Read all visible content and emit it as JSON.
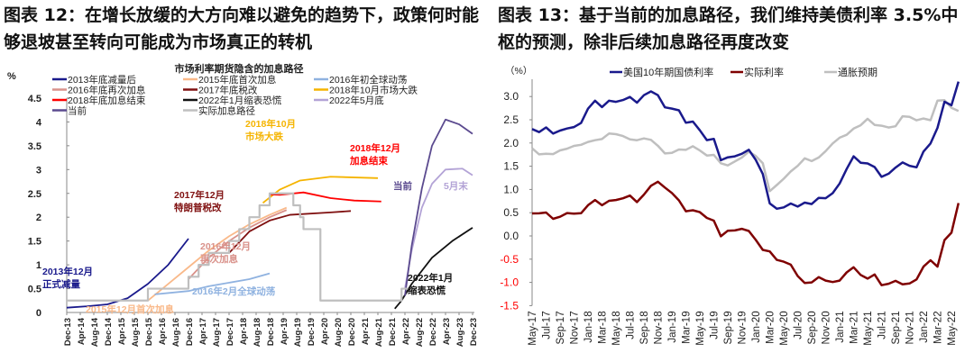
{
  "left": {
    "title": "图表 12：在增长放缓的大方向难以避免的趋势下，政策何时能够退坡甚至转向可能成为市场真正的转机"
  },
  "right": {
    "title": "图表 13：基于当前的加息路径，我们维持美债利率 3.5%中枢的预测，除非后续加息路径再度改变"
  },
  "chart_data": [
    {
      "type": "line",
      "title": "市场利率期货隐含的加息路径",
      "ylabel": "%",
      "ylim": [
        0,
        4.5
      ],
      "yticks": [
        "0",
        "0.5",
        "1",
        "1.5",
        "2",
        "2.5",
        "3",
        "3.5",
        "4",
        "4.5"
      ],
      "xticks": [
        "Dec-13",
        "Apr-14",
        "Aug-14",
        "Dec-14",
        "Apr-15",
        "Aug-15",
        "Dec-15",
        "Apr-16",
        "Aug-16",
        "Dec-16",
        "Apr-17",
        "Aug-17",
        "Dec-17",
        "Apr-18",
        "Aug-18",
        "Dec-18",
        "Apr-19",
        "Aug-19",
        "Dec-19",
        "Apr-20",
        "Aug-20",
        "Dec-20",
        "Apr-21",
        "Aug-21",
        "Dec-21",
        "Apr-22",
        "Aug-22",
        "Dec-22",
        "Apr-23",
        "Aug-23",
        "Dec-23"
      ],
      "legend_position": "top",
      "series": [
        {
          "name": "2013年底减量后",
          "color": "#1a1a8c",
          "points": [
            [
              "2013-12",
              0.1
            ],
            [
              "2014-06",
              0.13
            ],
            [
              "2014-12",
              0.17
            ],
            [
              "2015-06",
              0.3
            ],
            [
              "2015-12",
              0.6
            ],
            [
              "2016-06",
              1.0
            ],
            [
              "2016-12",
              1.55
            ]
          ]
        },
        {
          "name": "2015年底首次加息",
          "color": "#f9b98a",
          "points": [
            [
              "2015-12",
              0.25
            ],
            [
              "2016-06",
              0.6
            ],
            [
              "2016-12",
              0.95
            ],
            [
              "2017-06",
              1.3
            ],
            [
              "2017-12",
              1.6
            ],
            [
              "2018-06",
              1.85
            ],
            [
              "2018-12",
              2.05
            ],
            [
              "2019-05",
              2.2
            ]
          ]
        },
        {
          "name": "2016年初全球动荡",
          "color": "#8fb2e0",
          "points": [
            [
              "2016-02",
              0.38
            ],
            [
              "2016-12",
              0.45
            ],
            [
              "2017-06",
              0.55
            ],
            [
              "2018-06",
              0.7
            ],
            [
              "2018-12",
              0.82
            ]
          ]
        },
        {
          "name": "2016年底再次加息",
          "color": "#d9918a",
          "points": [
            [
              "2016-12",
              0.7
            ],
            [
              "2017-06",
              1.15
            ],
            [
              "2017-12",
              1.5
            ],
            [
              "2018-06",
              1.78
            ],
            [
              "2018-12",
              2.0
            ],
            [
              "2019-05",
              2.15
            ]
          ]
        },
        {
          "name": "2017年底税改",
          "color": "#7f1010",
          "points": [
            [
              "2017-12",
              1.25
            ],
            [
              "2018-06",
              1.7
            ],
            [
              "2018-12",
              1.93
            ],
            [
              "2019-06",
              2.05
            ],
            [
              "2020-06",
              2.1
            ],
            [
              "2020-12",
              2.13
            ]
          ]
        },
        {
          "name": "2018年10月市场大跌",
          "color": "#f5b400",
          "points": [
            [
              "2018-10",
              2.3
            ],
            [
              "2019-03",
              2.58
            ],
            [
              "2019-09",
              2.77
            ],
            [
              "2020-06",
              2.85
            ],
            [
              "2021-08",
              2.82
            ]
          ]
        },
        {
          "name": "2018年底加息结束",
          "color": "#ff0000",
          "points": [
            [
              "2018-12",
              2.48
            ],
            [
              "2019-03",
              2.47
            ],
            [
              "2019-10",
              2.52
            ],
            [
              "2020-06",
              2.4
            ],
            [
              "2021-01",
              2.35
            ],
            [
              "2021-09",
              2.33
            ]
          ]
        },
        {
          "name": "2022年1月缩表恐慌",
          "color": "#111111",
          "points": [
            [
              "2022-01",
              0.08
            ],
            [
              "2022-03",
              0.25
            ],
            [
              "2022-06",
              0.6
            ],
            [
              "2022-12",
              1.15
            ],
            [
              "2023-06",
              1.5
            ],
            [
              "2023-12",
              1.78
            ]
          ]
        },
        {
          "name": "2022年5月底",
          "color": "#b3a3d6",
          "points": [
            [
              "2022-04",
              0.5
            ],
            [
              "2022-06",
              1.3
            ],
            [
              "2022-09",
              2.2
            ],
            [
              "2022-12",
              2.7
            ],
            [
              "2023-04",
              3.0
            ],
            [
              "2023-09",
              3.02
            ],
            [
              "2023-12",
              2.88
            ]
          ]
        },
        {
          "name": "当前",
          "color": "#5b4a8f",
          "points": [
            [
              "2022-04",
              0.35
            ],
            [
              "2022-06",
              1.4
            ],
            [
              "2022-09",
              2.6
            ],
            [
              "2022-12",
              3.5
            ],
            [
              "2023-04",
              4.05
            ],
            [
              "2023-08",
              3.95
            ],
            [
              "2023-12",
              3.75
            ]
          ]
        },
        {
          "name": "实际加息路径",
          "color": "#bfbfbf",
          "step": true,
          "points": [
            [
              "2013-12",
              0.25
            ],
            [
              "2015-12",
              0.5
            ],
            [
              "2016-12",
              0.75
            ],
            [
              "2017-03",
              1.0
            ],
            [
              "2017-06",
              1.25
            ],
            [
              "2017-12",
              1.5
            ],
            [
              "2018-03",
              1.75
            ],
            [
              "2018-06",
              2.0
            ],
            [
              "2018-09",
              2.25
            ],
            [
              "2018-12",
              2.5
            ],
            [
              "2019-07",
              2.25
            ],
            [
              "2019-09",
              2.0
            ],
            [
              "2019-10",
              1.75
            ],
            [
              "2020-03",
              0.25
            ],
            [
              "2022-03",
              0.5
            ],
            [
              "2022-05",
              0.5
            ]
          ]
        }
      ],
      "annotations": [
        {
          "text": [
            "2013年12月",
            "正式减量"
          ],
          "color": "#1a1a8c"
        },
        {
          "text": [
            "2015年12月首次加息"
          ],
          "color": "#f9b98a"
        },
        {
          "text": [
            "2016年2月全球动荡"
          ],
          "color": "#8fb2e0"
        },
        {
          "text": [
            "2016年12月",
            "再次加息"
          ],
          "color": "#d9918a"
        },
        {
          "text": [
            "2017年12月",
            "特朗普税改"
          ],
          "color": "#7f1010"
        },
        {
          "text": [
            "2018年10月",
            "市场大跌"
          ],
          "color": "#f5b400"
        },
        {
          "text": [
            "2018年12月",
            "加息结束"
          ],
          "color": "#ff0000"
        },
        {
          "text": [
            "当前"
          ],
          "color": "#5b4a8f"
        },
        {
          "text": [
            "5月末"
          ],
          "color": "#b3a3d6"
        },
        {
          "text": [
            "2022年1月",
            "缩表恐慌"
          ],
          "color": "#111111"
        }
      ]
    },
    {
      "type": "line",
      "ylabel": "（%）",
      "ylim": [
        -1.5,
        3.5
      ],
      "yticks": [
        "3.0",
        "2.5",
        "2.0",
        "1.5",
        "1.0",
        "0.5",
        "0.0",
        "-0.5",
        "-1.0",
        "-1.5"
      ],
      "negative_tick_color": "#ff0000",
      "xticks": [
        "May-17",
        "Jul-17",
        "Sep-17",
        "Nov-17",
        "Jan-18",
        "Mar-18",
        "May-18",
        "Jul-18",
        "Sep-18",
        "Nov-18",
        "Jan-19",
        "Mar-19",
        "May-19",
        "Jul-19",
        "Sep-19",
        "Nov-19",
        "Jan-20",
        "Mar-20",
        "May-20",
        "Jul-20",
        "Sep-20",
        "Nov-20",
        "Jan-21",
        "Mar-21",
        "May-21",
        "Jul-21",
        "Sep-21",
        "Nov-21",
        "Jan-22",
        "Mar-22",
        "May-22"
      ],
      "x_start": "2017-05",
      "legend_position": "top",
      "series": [
        {
          "name": "美国10年期国债利率",
          "color": "#1a1a8c",
          "values": [
            2.3,
            2.2,
            2.3,
            2.2,
            2.3,
            2.35,
            2.35,
            2.4,
            2.7,
            2.9,
            2.8,
            2.95,
            2.9,
            2.9,
            2.95,
            2.85,
            3.05,
            3.15,
            3.05,
            2.75,
            2.7,
            2.68,
            2.45,
            2.5,
            2.3,
            2.05,
            2.05,
            1.6,
            1.7,
            1.75,
            1.8,
            1.85,
            1.6,
            1.3,
            0.7,
            0.62,
            0.65,
            0.7,
            0.6,
            0.68,
            0.68,
            0.85,
            0.85,
            0.93,
            1.1,
            1.4,
            1.7,
            1.6,
            1.6,
            1.5,
            1.25,
            1.3,
            1.45,
            1.6,
            1.55,
            1.5,
            1.8,
            1.95,
            2.3,
            2.9,
            2.85,
            3.35
          ]
        },
        {
          "name": "实际利率",
          "color": "#7f0000",
          "values": [
            0.45,
            0.45,
            0.5,
            0.4,
            0.45,
            0.5,
            0.45,
            0.45,
            0.65,
            0.8,
            0.7,
            0.77,
            0.75,
            0.77,
            0.85,
            0.75,
            0.93,
            1.1,
            1.15,
            1.0,
            0.9,
            0.78,
            0.57,
            0.58,
            0.5,
            0.35,
            0.3,
            0.0,
            0.15,
            0.15,
            0.15,
            0.07,
            -0.12,
            -0.3,
            -0.3,
            -0.48,
            -0.55,
            -0.65,
            -0.9,
            -1.02,
            -0.97,
            -0.85,
            -0.95,
            -1.02,
            -1.0,
            -0.8,
            -0.65,
            -0.8,
            -0.9,
            -0.85,
            -1.1,
            -1.05,
            -0.95,
            -1.0,
            -1.0,
            -0.95,
            -0.7,
            -0.55,
            -0.65,
            -0.05,
            0.1,
            0.7
          ]
        },
        {
          "name": "通胀预期",
          "color": "#bfbfbf",
          "values": [
            1.85,
            1.75,
            1.8,
            1.8,
            1.85,
            1.85,
            1.9,
            1.95,
            2.05,
            2.1,
            2.1,
            2.18,
            2.15,
            2.13,
            2.1,
            2.1,
            2.12,
            2.05,
            1.9,
            1.75,
            1.8,
            1.9,
            1.88,
            1.92,
            1.8,
            1.7,
            1.75,
            1.6,
            1.55,
            1.6,
            1.65,
            1.78,
            1.72,
            1.6,
            1.0,
            1.1,
            1.2,
            1.35,
            1.5,
            1.7,
            1.65,
            1.7,
            1.8,
            1.95,
            2.1,
            2.2,
            2.35,
            2.4,
            2.5,
            2.35,
            2.35,
            2.35,
            2.4,
            2.6,
            2.55,
            2.45,
            2.5,
            2.5,
            2.95,
            2.95,
            2.75,
            2.65
          ]
        }
      ]
    }
  ]
}
